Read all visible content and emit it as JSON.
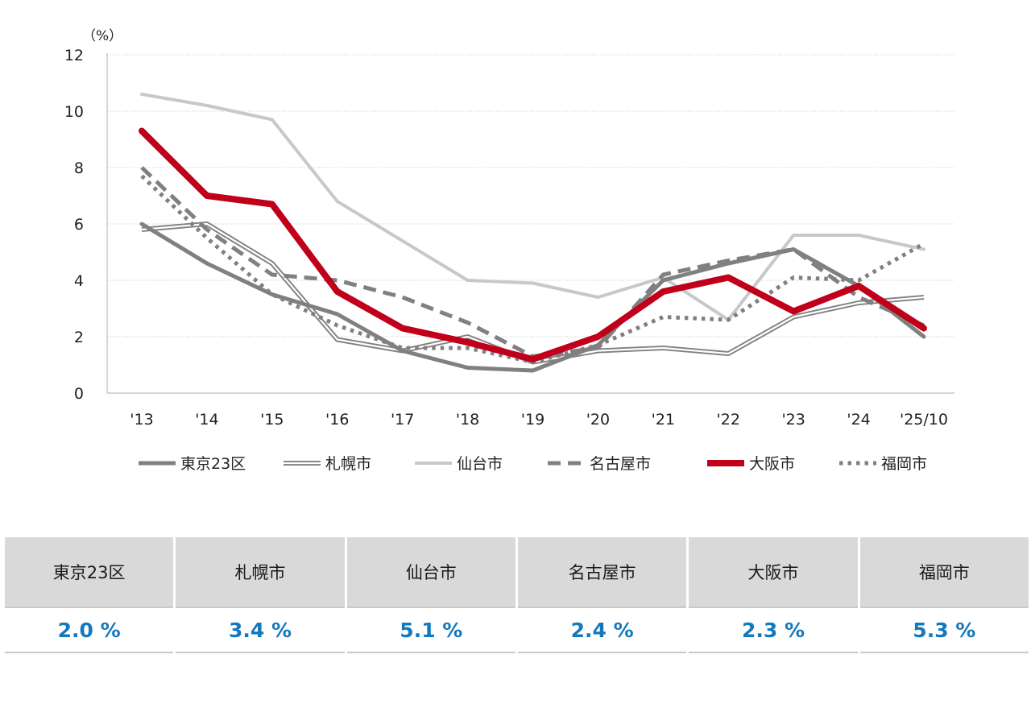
{
  "chart_data": {
    "type": "line",
    "unit_label": "（%）",
    "ylim": [
      0,
      12
    ],
    "yticks": [
      0,
      2,
      4,
      6,
      8,
      10,
      12
    ],
    "grid": true,
    "legend_position": "bottom",
    "categories": [
      "'13",
      "'14",
      "'15",
      "'16",
      "'17",
      "'18",
      "'19",
      "'20",
      "'21",
      "'22",
      "'23",
      "'24",
      "'25/10"
    ],
    "series": [
      {
        "name": "東京23区",
        "color": "#808080",
        "style": "solid-medium",
        "values": [
          6.0,
          4.6,
          3.5,
          2.8,
          1.5,
          0.9,
          0.8,
          1.7,
          4.0,
          4.6,
          5.1,
          3.8,
          2.0
        ]
      },
      {
        "name": "札幌市",
        "color": "#808080",
        "style": "double",
        "values": [
          5.8,
          6.0,
          4.6,
          1.9,
          1.5,
          2.0,
          1.1,
          1.5,
          1.6,
          1.4,
          2.7,
          3.2,
          3.4
        ]
      },
      {
        "name": "仙台市",
        "color": "#c8c8c8",
        "style": "solid-light",
        "values": [
          10.6,
          10.2,
          9.7,
          6.8,
          5.4,
          4.0,
          3.9,
          3.4,
          4.1,
          2.6,
          5.6,
          5.6,
          5.1
        ]
      },
      {
        "name": "名古屋市",
        "color": "#808080",
        "style": "dashed",
        "values": [
          8.0,
          5.8,
          4.2,
          4.0,
          3.4,
          2.5,
          1.3,
          1.6,
          4.2,
          4.7,
          5.1,
          3.4,
          2.4
        ]
      },
      {
        "name": "大阪市",
        "color": "#c0001a",
        "style": "solid-thick",
        "values": [
          9.3,
          7.0,
          6.7,
          3.6,
          2.3,
          1.8,
          1.2,
          2.0,
          3.6,
          4.1,
          2.9,
          3.8,
          2.3
        ]
      },
      {
        "name": "福岡市",
        "color": "#808080",
        "style": "dotted",
        "values": [
          7.7,
          5.5,
          3.5,
          2.4,
          1.6,
          1.6,
          1.1,
          1.7,
          2.7,
          2.6,
          4.1,
          4.0,
          5.3
        ]
      }
    ]
  },
  "summary": {
    "headers": [
      "東京23区",
      "札幌市",
      "仙台市",
      "名古屋市",
      "大阪市",
      "福岡市"
    ],
    "values": [
      "2.0 %",
      "3.4 %",
      "5.1 %",
      "2.4 %",
      "2.3 %",
      "5.3 %"
    ]
  }
}
